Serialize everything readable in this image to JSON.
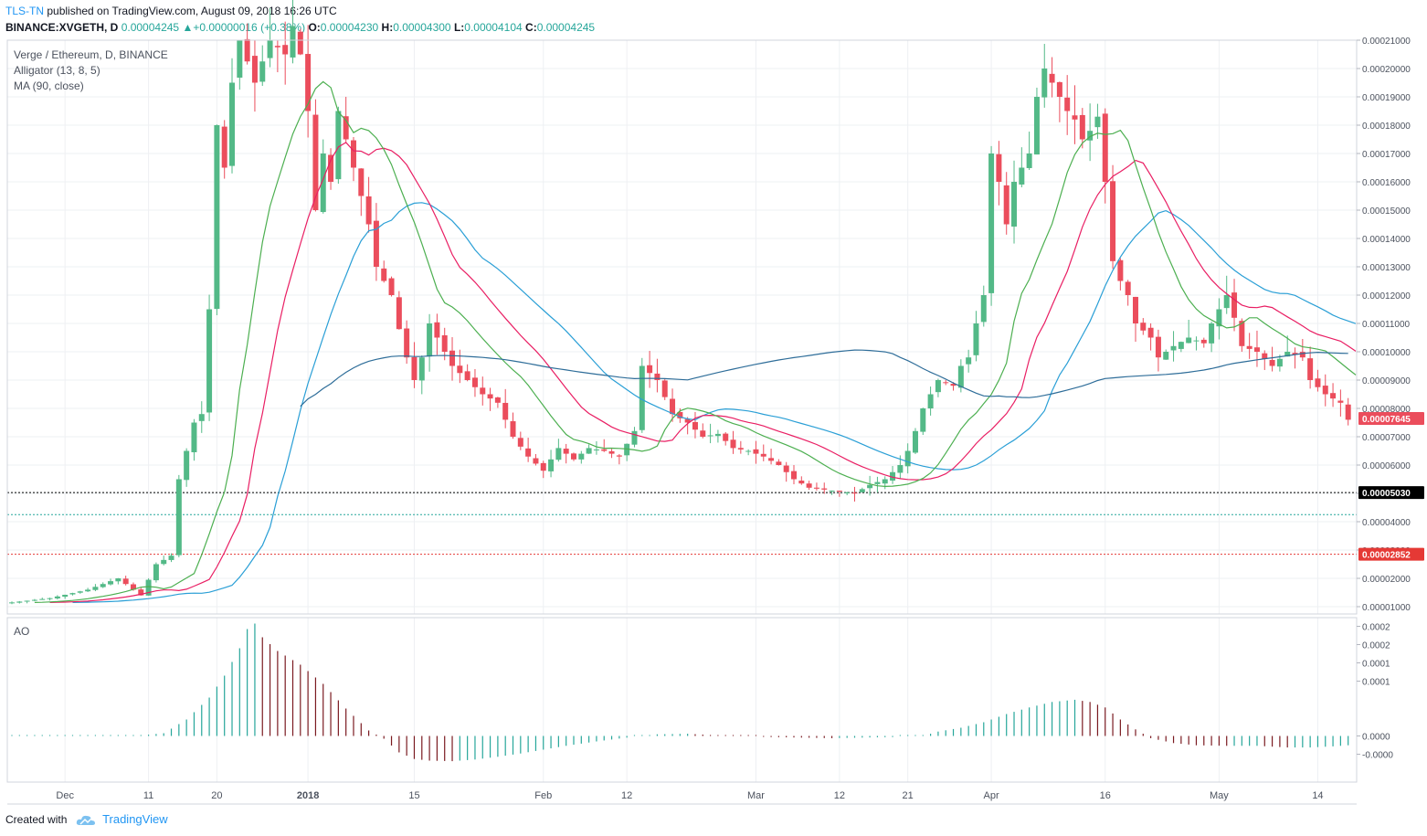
{
  "header": {
    "publisher": "TLS-TN",
    "published_text": "published on TradingView.com, August 09, 2018 16:26 UTC",
    "symbol": "BINANCE:XVGETH, D",
    "last": "0.00004245",
    "change": "+0.00000016 (+0.38%)",
    "open_label": "O:",
    "open": "0.00004230",
    "high_label": "H:",
    "high": "0.00004300",
    "low_label": "L:",
    "low": "0.00004104",
    "close_label": "C:",
    "close": "0.00004245"
  },
  "legend": {
    "title": "Verge / Ethereum, D, BINANCE",
    "alligator": "Alligator (13, 8, 5)",
    "ma": "MA (90, close)"
  },
  "ao_label": "AO",
  "footer": {
    "created": "Created with",
    "brand": "TradingView"
  },
  "colors": {
    "up": "#53b987",
    "down": "#eb4d5c",
    "jaw": "#2a9fd6",
    "teeth": "#e91e63",
    "lips": "#4caf50",
    "ma": "#2e6d99",
    "ao_up": "#26a69a",
    "ao_down": "#7a1a20",
    "grid": "#eef0f3",
    "axis_text": "#4c525e"
  },
  "chart_data": [
    {
      "type": "candlestick",
      "title": "Verge / Ethereum, D, BINANCE",
      "ylim": [
        0.0,
        0.00021
      ],
      "y_ticks": [
        "0.00001000",
        "0.00002000",
        "0.00003000",
        "0.00004000",
        "0.00005000",
        "0.00006000",
        "0.00007000",
        "0.00008000",
        "0.00009000",
        "0.00010000",
        "0.00011000",
        "0.00012000",
        "0.00013000",
        "0.00014000",
        "0.00015000",
        "0.00016000",
        "0.00017000",
        "0.00018000",
        "0.00019000",
        "0.00020000",
        "0.00021000"
      ],
      "x_ticks": [
        {
          "label": "Dec",
          "i": 7
        },
        {
          "label": "11",
          "i": 18
        },
        {
          "label": "20",
          "i": 27
        },
        {
          "label": "2018",
          "i": 39
        },
        {
          "label": "15",
          "i": 53
        },
        {
          "label": "Feb",
          "i": 70
        },
        {
          "label": "12",
          "i": 81
        },
        {
          "label": "Mar",
          "i": 98
        },
        {
          "label": "12",
          "i": 109
        },
        {
          "label": "21",
          "i": 118
        },
        {
          "label": "Apr",
          "i": 129
        },
        {
          "label": "16",
          "i": 144
        },
        {
          "label": "May",
          "i": 159
        },
        {
          "label": "14",
          "i": 172
        }
      ],
      "price_lines": [
        {
          "value": 5.03e-05,
          "label": "0.00005030",
          "style": "black-dotted"
        },
        {
          "value": 4.25e-05,
          "label": "",
          "style": "teal-dotted"
        },
        {
          "value": 2.852e-05,
          "label": "0.00002852",
          "style": "red-dotted"
        }
      ],
      "last_price": {
        "value": 7.645e-05,
        "label": "0.00007645"
      },
      "anchors_close": [
        [
          0,
          1.15e-05
        ],
        [
          5,
          1.3e-05
        ],
        [
          10,
          1.6e-05
        ],
        [
          14,
          2e-05
        ],
        [
          17,
          1.4e-05
        ],
        [
          19,
          2.5e-05
        ],
        [
          21,
          2.8e-05
        ],
        [
          22,
          5.5e-05
        ],
        [
          24,
          7.5e-05
        ],
        [
          25,
          7.8e-05
        ],
        [
          26,
          0.000115
        ],
        [
          27,
          0.00018
        ],
        [
          28,
          0.000165
        ],
        [
          29,
          0.000195
        ],
        [
          30,
          0.00021
        ],
        [
          32,
          0.000195
        ],
        [
          34,
          0.00021
        ],
        [
          36,
          0.000205
        ],
        [
          37,
          0.000215
        ],
        [
          38,
          0.000205
        ],
        [
          39,
          0.000185
        ],
        [
          40,
          0.00015
        ],
        [
          41,
          0.00017
        ],
        [
          42,
          0.00016
        ],
        [
          43,
          0.000185
        ],
        [
          45,
          0.000165
        ],
        [
          46,
          0.000155
        ],
        [
          47,
          0.000145
        ],
        [
          48,
          0.00013
        ],
        [
          49,
          0.000125
        ],
        [
          50,
          0.00012
        ],
        [
          51,
          0.000108
        ],
        [
          52,
          9.8e-05
        ],
        [
          53,
          9e-05
        ],
        [
          54,
          9.8e-05
        ],
        [
          55,
          0.00011
        ],
        [
          56,
          0.000105
        ],
        [
          58,
          9.5e-05
        ],
        [
          60,
          9e-05
        ],
        [
          62,
          8.5e-05
        ],
        [
          64,
          8.2e-05
        ],
        [
          66,
          7e-05
        ],
        [
          68,
          6.3e-05
        ],
        [
          70,
          5.8e-05
        ],
        [
          72,
          6.6e-05
        ],
        [
          74,
          6.2e-05
        ],
        [
          76,
          6.6e-05
        ],
        [
          78,
          6.5e-05
        ],
        [
          80,
          6.3e-05
        ],
        [
          82,
          7.2e-05
        ],
        [
          83,
          9.5e-05
        ],
        [
          85,
          9e-05
        ],
        [
          87,
          7.8e-05
        ],
        [
          89,
          7.5e-05
        ],
        [
          91,
          7e-05
        ],
        [
          93,
          7.1e-05
        ],
        [
          95,
          6.6e-05
        ],
        [
          97,
          6.5e-05
        ],
        [
          99,
          6.3e-05
        ],
        [
          101,
          6e-05
        ],
        [
          103,
          5.5e-05
        ],
        [
          105,
          5.2e-05
        ],
        [
          108,
          5.1e-05
        ],
        [
          111,
          5e-05
        ],
        [
          113,
          5.3e-05
        ],
        [
          115,
          5.5e-05
        ],
        [
          117,
          6e-05
        ],
        [
          118,
          6.5e-05
        ],
        [
          119,
          7.2e-05
        ],
        [
          120,
          8e-05
        ],
        [
          122,
          9e-05
        ],
        [
          124,
          8.8e-05
        ],
        [
          125,
          9.5e-05
        ],
        [
          126,
          9.8e-05
        ],
        [
          127,
          0.00011
        ],
        [
          128,
          0.00012
        ],
        [
          129,
          0.00017
        ],
        [
          130,
          0.00016
        ],
        [
          131,
          0.000145
        ],
        [
          132,
          0.00016
        ],
        [
          133,
          0.000165
        ],
        [
          134,
          0.00017
        ],
        [
          135,
          0.00019
        ],
        [
          136,
          0.0002
        ],
        [
          137,
          0.000195
        ],
        [
          138,
          0.00019
        ],
        [
          139,
          0.000185
        ],
        [
          140,
          0.000182
        ],
        [
          141,
          0.000175
        ],
        [
          142,
          0.000178
        ],
        [
          143,
          0.000183
        ],
        [
          144,
          0.00016
        ],
        [
          145,
          0.000132
        ],
        [
          146,
          0.000125
        ],
        [
          147,
          0.00012
        ],
        [
          148,
          0.00011
        ],
        [
          150,
          0.000105
        ],
        [
          151,
          9.8e-05
        ],
        [
          153,
          0.000102
        ],
        [
          155,
          0.000105
        ],
        [
          157,
          0.000103
        ],
        [
          158,
          0.00011
        ],
        [
          160,
          0.00012
        ],
        [
          161,
          0.000112
        ],
        [
          162,
          0.000102
        ],
        [
          164,
          0.0001
        ],
        [
          166,
          9.5e-05
        ],
        [
          168,
          0.0001
        ],
        [
          170,
          9.8e-05
        ],
        [
          171,
          9e-05
        ],
        [
          173,
          8.5e-05
        ],
        [
          175,
          8.2e-05
        ],
        [
          176,
          7.6e-05
        ]
      ],
      "series": [
        {
          "name": "Alligator (13, 8, 5)",
          "values": []
        },
        {
          "name": "MA (90, close)",
          "values": []
        }
      ]
    },
    {
      "type": "bar",
      "title": "AO",
      "ylim": [
        -0.0001,
        0.00024
      ],
      "y_ticks": [
        {
          "label": "0.0002",
          "value": 0.0002
        },
        {
          "label": "0.0002",
          "value": 0.0001667
        },
        {
          "label": "0.0001",
          "value": 0.0001333
        },
        {
          "label": "0.0001",
          "value": 0.0001
        },
        {
          "label": "0.0000",
          "value": 0.0
        },
        {
          "label": "-0.0000",
          "value": -3.33e-05
        }
      ],
      "anchors": [
        [
          0,
          1e-06
        ],
        [
          17,
          1e-06
        ],
        [
          20,
          5e-06
        ],
        [
          23,
          3e-05
        ],
        [
          26,
          7e-05
        ],
        [
          28,
          0.00011
        ],
        [
          30,
          0.00016
        ],
        [
          31,
          0.000195
        ],
        [
          32,
          0.000205
        ],
        [
          33,
          0.00018
        ],
        [
          35,
          0.000155
        ],
        [
          38,
          0.00013
        ],
        [
          41,
          9.5e-05
        ],
        [
          44,
          5e-05
        ],
        [
          47,
          1e-05
        ],
        [
          49,
          -5e-06
        ],
        [
          51,
          -3e-05
        ],
        [
          53,
          -4.2e-05
        ],
        [
          55,
          -4.5e-05
        ],
        [
          58,
          -4.6e-05
        ],
        [
          61,
          -4.3e-05
        ],
        [
          64,
          -3.8e-05
        ],
        [
          67,
          -3.2e-05
        ],
        [
          70,
          -2.5e-05
        ],
        [
          73,
          -1.8e-05
        ],
        [
          77,
          -1e-05
        ],
        [
          81,
          -3e-06
        ],
        [
          85,
          3e-06
        ],
        [
          89,
          4e-06
        ],
        [
          93,
          1e-06
        ],
        [
          94,
          0.0
        ],
        [
          100,
          -2e-06
        ],
        [
          104,
          -3e-06
        ],
        [
          108,
          -4e-06
        ],
        [
          112,
          -3e-06
        ],
        [
          116,
          -2e-06
        ],
        [
          120,
          0.0
        ],
        [
          122,
          8e-06
        ],
        [
          125,
          1.5e-05
        ],
        [
          128,
          2.5e-05
        ],
        [
          131,
          4e-05
        ],
        [
          134,
          5.2e-05
        ],
        [
          137,
          6.2e-05
        ],
        [
          140,
          6.6e-05
        ],
        [
          142,
          6.2e-05
        ],
        [
          144,
          5.2e-05
        ],
        [
          146,
          3e-05
        ],
        [
          148,
          1.2e-05
        ],
        [
          150,
          -4e-06
        ],
        [
          153,
          -1.3e-05
        ],
        [
          156,
          -1.7e-05
        ],
        [
          160,
          -1.8e-05
        ],
        [
          164,
          -1.8e-05
        ],
        [
          168,
          -2.1e-05
        ],
        [
          171,
          -2.1e-05
        ],
        [
          174,
          -1.9e-05
        ],
        [
          176,
          -1.7e-05
        ]
      ]
    }
  ]
}
